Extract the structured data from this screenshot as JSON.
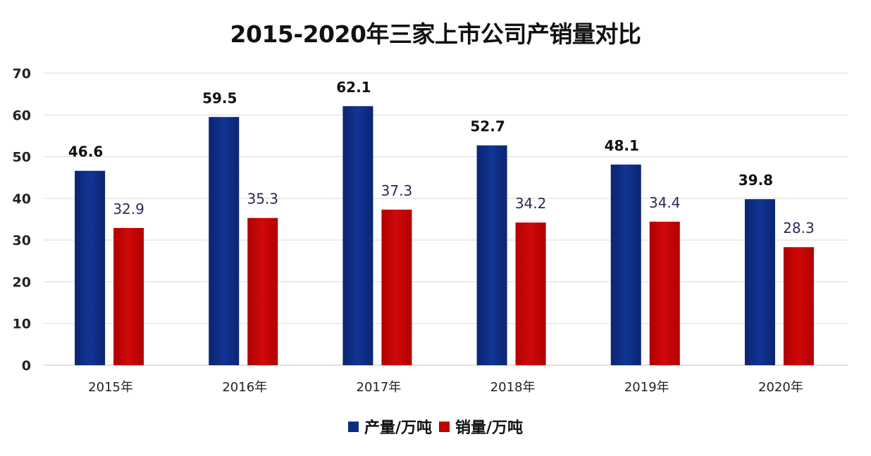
{
  "chart_data": {
    "type": "bar",
    "title": "2015-2020年三家上市公司产销量对比",
    "categories": [
      "2015年",
      "2016年",
      "2017年",
      "2018年",
      "2019年",
      "2020年"
    ],
    "series": [
      {
        "name": "产量/万吨",
        "color": "#0d2d85",
        "values": [
          46.6,
          59.5,
          62.1,
          52.7,
          48.1,
          39.8
        ]
      },
      {
        "name": "销量/万吨",
        "color": "#c00000",
        "values": [
          32.9,
          35.3,
          37.3,
          34.2,
          34.4,
          28.3
        ]
      }
    ],
    "ylim": [
      0,
      70
    ],
    "yticks": [
      0,
      10,
      20,
      30,
      40,
      50,
      60,
      70
    ],
    "grid": true,
    "legend": "bottom"
  }
}
